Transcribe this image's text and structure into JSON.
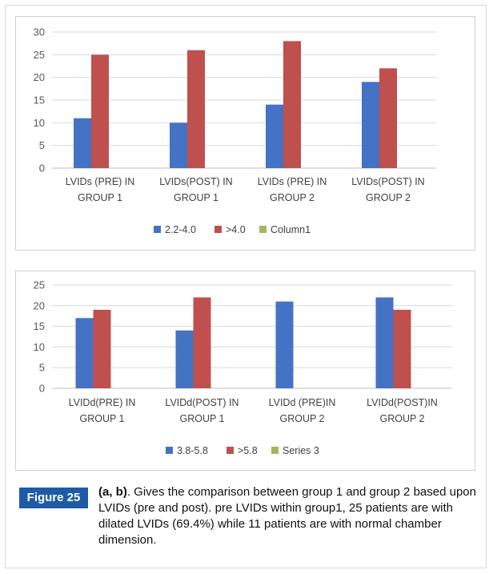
{
  "chart_data": [
    {
      "type": "bar",
      "categories": [
        [
          "LVIDs (PRE) IN",
          "GROUP 1"
        ],
        [
          "LVIDs(POST) IN",
          "GROUP 1"
        ],
        [
          "LVIDs (PRE) IN",
          "GROUP 2"
        ],
        [
          "LVIDs(POST) IN",
          "GROUP 2"
        ]
      ],
      "series": [
        {
          "name": "2.2-4.0",
          "color": "#4472c4",
          "values": [
            11,
            10,
            14,
            19
          ]
        },
        {
          "name": ">4.0",
          "color": "#c0504d",
          "values": [
            25,
            26,
            28,
            22
          ]
        },
        {
          "name": "Column1",
          "color": "#9bbb59",
          "values": [
            0,
            0,
            0,
            0
          ]
        }
      ],
      "ylim": [
        0,
        30
      ],
      "yticks": [
        0,
        5,
        10,
        15,
        20,
        25,
        30
      ],
      "grid": true,
      "legend_position": "bottom"
    },
    {
      "type": "bar",
      "categories": [
        [
          "LVIDd(PRE) IN",
          "GROUP 1"
        ],
        [
          "LVIDd(POST) IN",
          "GROUP 1"
        ],
        [
          "LVIDd (PRE)IN",
          "GROUP 2"
        ],
        [
          "LVIDd(POST)IN",
          "GROUP 2"
        ]
      ],
      "series": [
        {
          "name": "3.8-5.8",
          "color": "#4472c4",
          "values": [
            17,
            14,
            21,
            22
          ]
        },
        {
          "name": ">5.8",
          "color": "#c0504d",
          "values": [
            19,
            22,
            0,
            19
          ]
        },
        {
          "name": "Series 3",
          "color": "#9bbb59",
          "values": [
            0,
            0,
            0,
            0
          ]
        }
      ],
      "ylim": [
        0,
        25
      ],
      "yticks": [
        0,
        5,
        10,
        15,
        20,
        25
      ],
      "grid": true,
      "legend_position": "bottom"
    }
  ],
  "caption": {
    "figure_label": "Figure 25",
    "bold_part": "(a, b)",
    "text": ". Gives the comparison between group 1 and group 2 based upon LVIDs (pre and post). pre LVIDs within group1, 25 patients are with dilated LVIDs (69.4%) while 11 patients are with normal chamber dimension."
  }
}
